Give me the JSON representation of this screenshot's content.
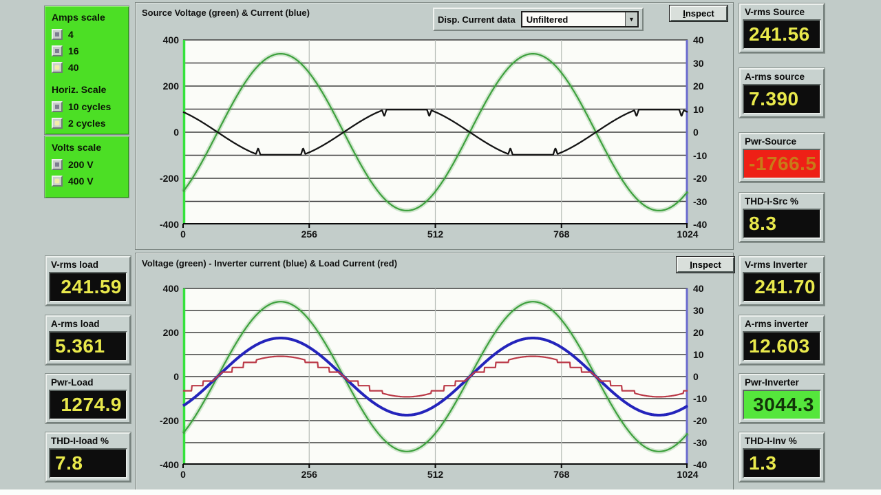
{
  "window": {
    "bg": "#c1cbc8"
  },
  "colors": {
    "panel_green": "#4cdf25",
    "lcd_bg": "#0d0d0d",
    "lcd_text": "#e9e94c",
    "alarm_bg": "#ee2016",
    "alarm_text": "#c97a18",
    "ok_bg": "#55e63c",
    "voltage_trace": "#3da03d",
    "source_current_trace": "#141414",
    "inverter_current_trace": "#2424bb",
    "load_current_trace": "#bb3a48"
  },
  "icons": {
    "dropdown_arrow": "▼"
  },
  "left_panel": {
    "groups": [
      {
        "title": "Amps scale",
        "options": [
          {
            "label": "4",
            "selected": false
          },
          {
            "label": "16",
            "selected": false
          },
          {
            "label": "40",
            "selected": true
          }
        ]
      },
      {
        "title": "Horiz. Scale",
        "options": [
          {
            "label": "10 cycles",
            "selected": false
          },
          {
            "label": "2 cycles",
            "selected": true
          }
        ]
      },
      {
        "title": "Volts scale",
        "options": [
          {
            "label": "200 V",
            "selected": false
          },
          {
            "label": "400 V",
            "selected": true
          }
        ]
      }
    ]
  },
  "top_chart": {
    "title": "Source Voltage (green) & Current (blue)",
    "disp_label": "Disp. Current data",
    "disp_value": "Unfiltered",
    "inspect_label": "Inspect"
  },
  "bottom_chart": {
    "title": "Voltage (green) - Inverter current (blue) & Load Current (red)",
    "inspect_label": "Inspect"
  },
  "readouts": {
    "left": [
      {
        "label": "V-rms load",
        "value": "241.59"
      },
      {
        "label": "A-rms load",
        "value": "5.361"
      },
      {
        "label": "Pwr-Load",
        "value": "1274.9"
      },
      {
        "label": "THD-I-load %",
        "value": "7.8"
      }
    ],
    "right_top": [
      {
        "label": "V-rms Source",
        "value": "241.56"
      },
      {
        "label": "A-rms source",
        "value": "7.390"
      },
      {
        "label": "Pwr-Source",
        "value": "-1766.5"
      },
      {
        "label": "THD-I-Src %",
        "value": "8.3"
      }
    ],
    "right_bottom": [
      {
        "label": "V-rms Inverter",
        "value": "241.70"
      },
      {
        "label": "A-rms inverter",
        "value": "12.603"
      },
      {
        "label": "Pwr-Inverter",
        "value": "3044.3"
      },
      {
        "label": "THD-I-Inv %",
        "value": "1.3"
      }
    ]
  },
  "chart_data": [
    {
      "type": "line",
      "title": "Source Voltage (green) & Current (blue)",
      "x_range": [
        0,
        1024
      ],
      "x_ticks": [
        0,
        256,
        512,
        768,
        1024
      ],
      "y_left_ticks": [
        400,
        200,
        0,
        -200,
        -400
      ],
      "y_left_range": [
        -400,
        400
      ],
      "y_right_ticks": [
        40,
        30,
        20,
        10,
        0,
        -10,
        -20,
        -30,
        -40
      ],
      "y_right_range": [
        -40,
        40
      ],
      "samples_per_cycle": 512,
      "zero_cross_sample": 70,
      "grid": {
        "h_lines_every": 100,
        "v_lines_at": [
          256,
          512,
          768
        ]
      },
      "legend_position": "title",
      "series": [
        {
          "name": "source-voltage",
          "axis": "left",
          "shape": "sine",
          "peak": 340,
          "rms_readout": 241.56,
          "color": "#3da03d",
          "width": 2.2,
          "halo": true
        },
        {
          "name": "source-current",
          "axis": "right",
          "shape": "clipped-sine",
          "peak": -9.8,
          "clip": 1.18,
          "notches": true,
          "rms_readout": 7.39,
          "color": "#141414",
          "width": 2.3
        }
      ]
    },
    {
      "type": "line",
      "title": "Voltage (green) - Inverter current (blue) & Load Current (red)",
      "x_range": [
        0,
        1024
      ],
      "x_ticks": [
        0,
        256,
        512,
        768,
        1024
      ],
      "y_left_ticks": [
        400,
        200,
        0,
        -200,
        -400
      ],
      "y_left_range": [
        -400,
        400
      ],
      "y_right_ticks": [
        40,
        30,
        20,
        10,
        0,
        -10,
        -20,
        -30,
        -40
      ],
      "y_right_range": [
        -40,
        40
      ],
      "samples_per_cycle": 512,
      "zero_cross_sample": 70,
      "grid": {
        "h_lines_every": 100,
        "v_lines_at": [
          256,
          512,
          768
        ]
      },
      "legend_position": "title",
      "series": [
        {
          "name": "voltage",
          "axis": "left",
          "shape": "sine",
          "peak": 340,
          "rms_readout": 241.7,
          "color": "#3da03d",
          "width": 2.2,
          "halo": true
        },
        {
          "name": "inverter-current",
          "axis": "right",
          "shape": "sine",
          "peak": 17.5,
          "rms_readout": 12.603,
          "color": "#2424bb",
          "width": 4
        },
        {
          "name": "load-current",
          "axis": "right",
          "shape": "stepped-sine",
          "peak": 9.2,
          "rms_readout": 5.361,
          "color": "#bb3a48",
          "width": 2.2
        }
      ]
    }
  ]
}
